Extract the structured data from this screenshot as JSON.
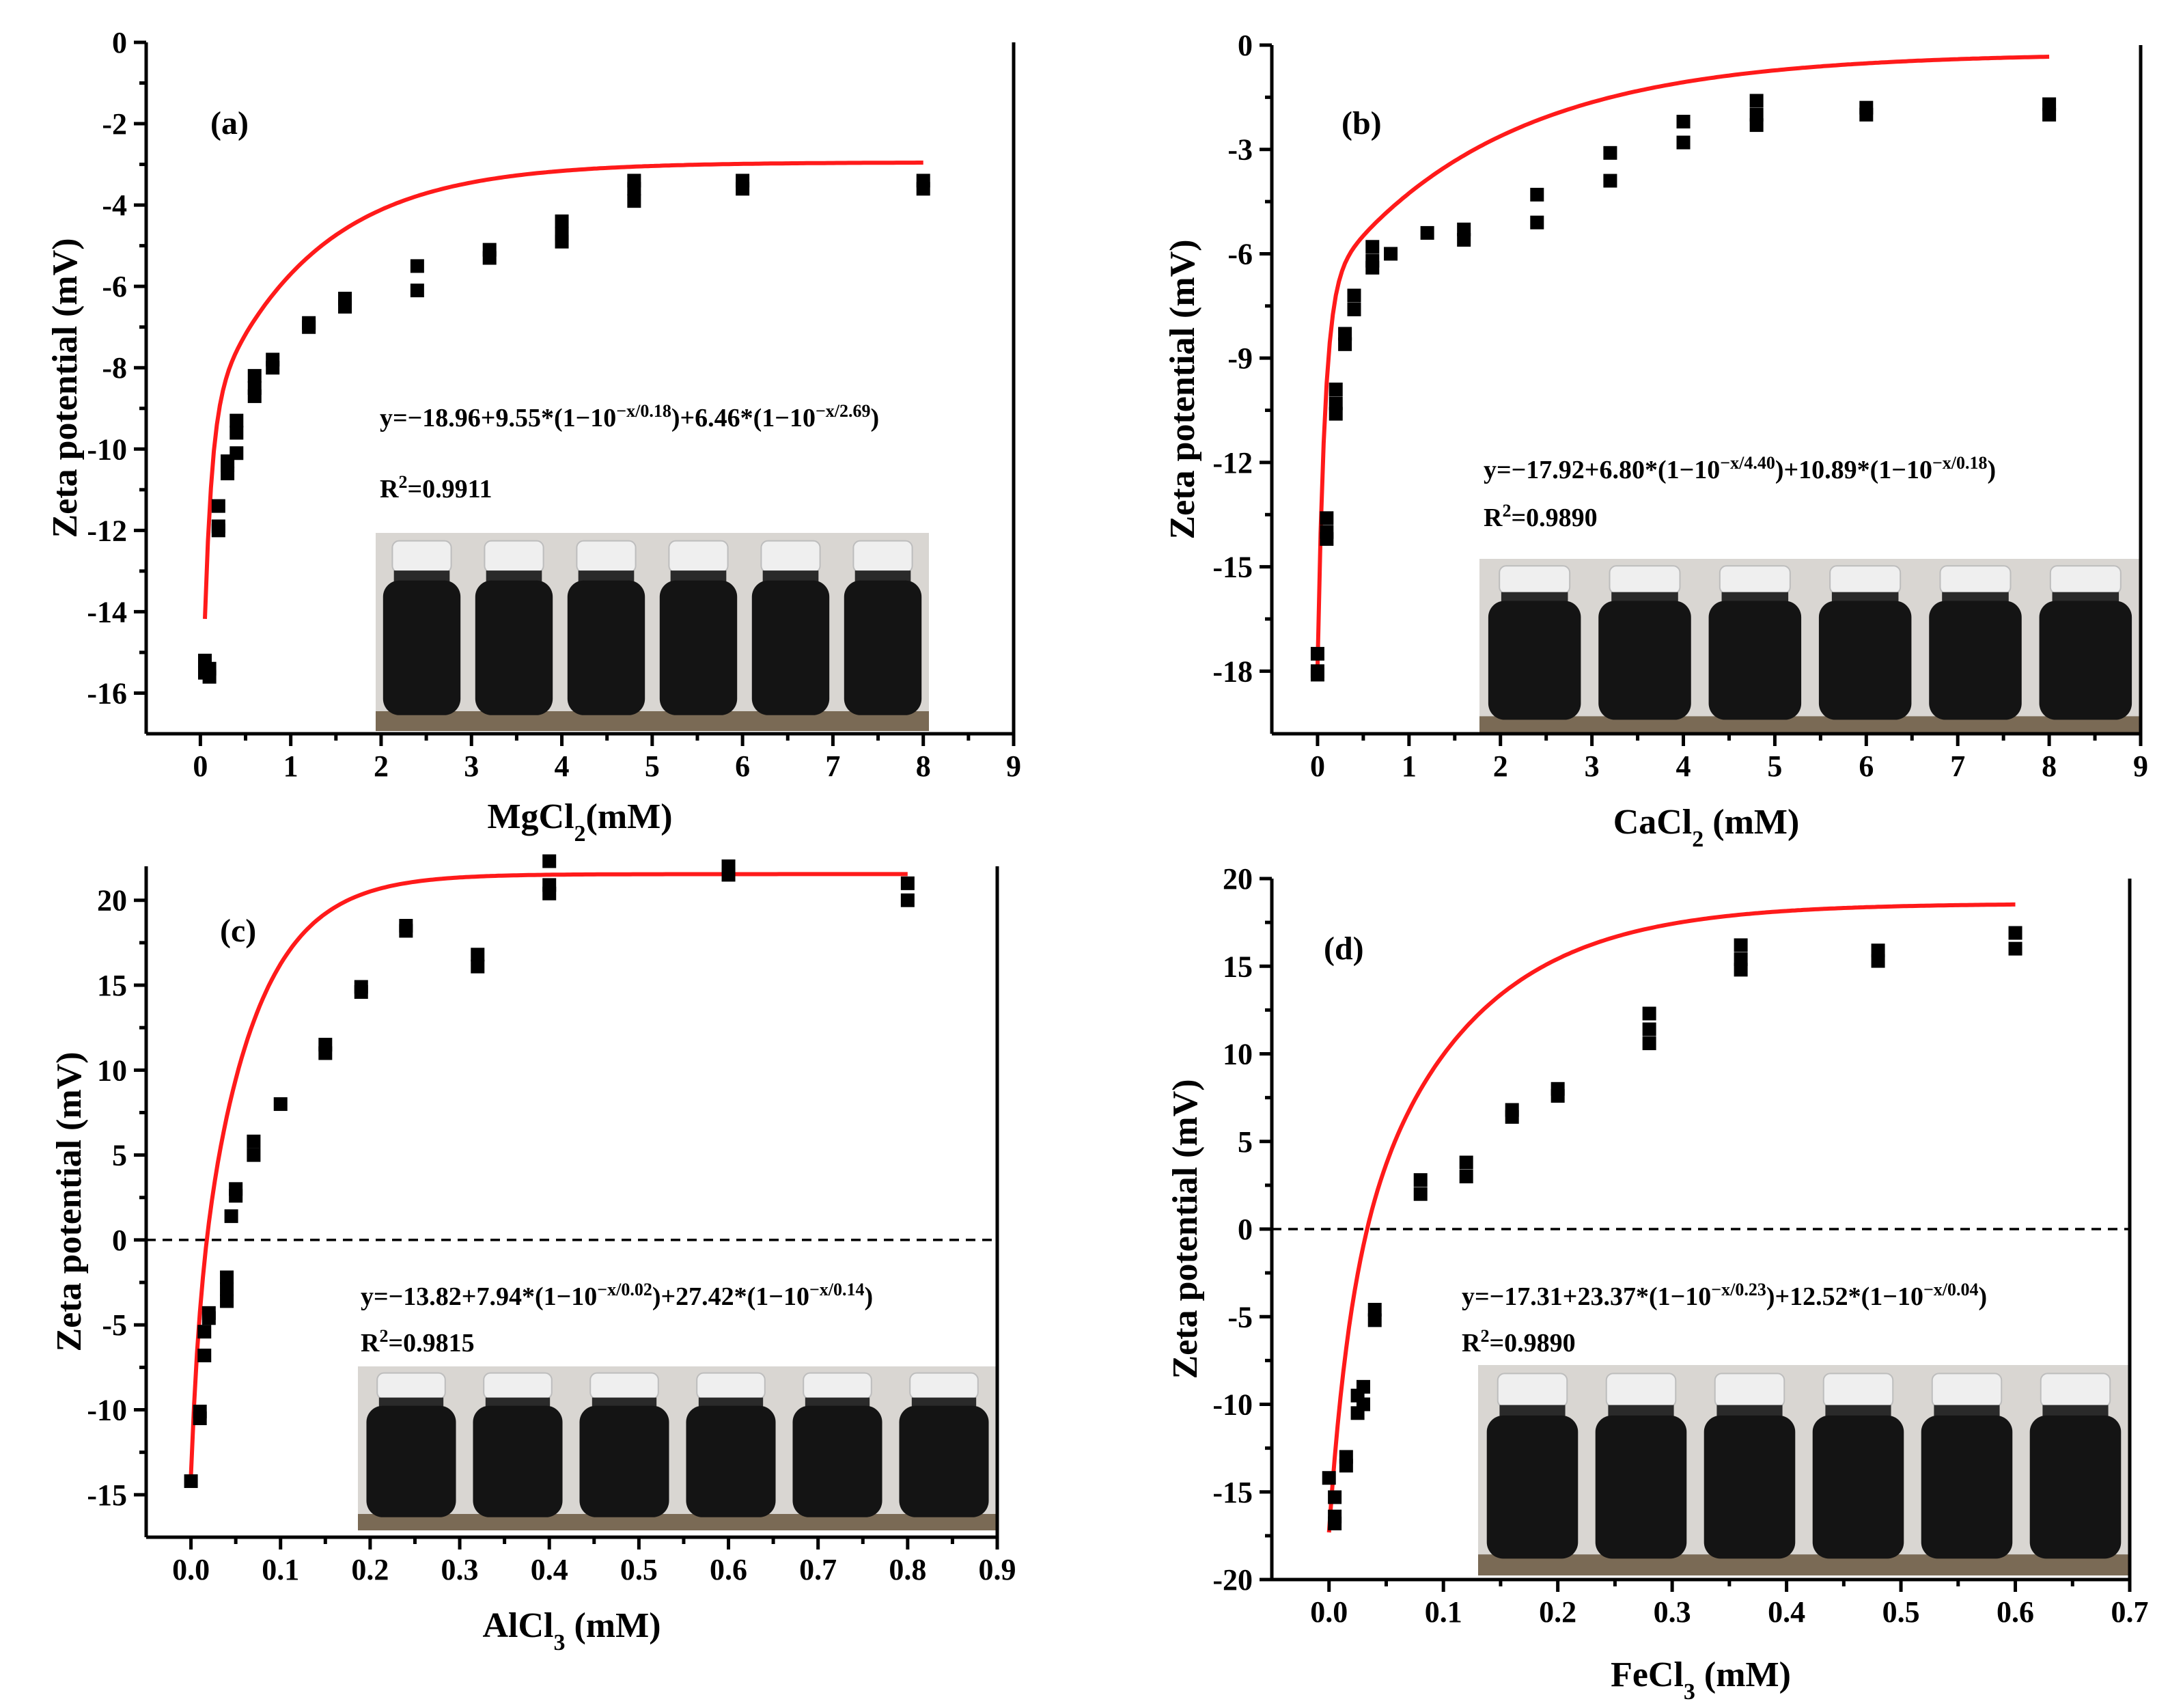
{
  "chart_data": [
    {
      "id": "a",
      "type": "scatter",
      "panel_label": "(a)",
      "xlabel_main": "MgCl",
      "xlabel_sub": "2",
      "xlabel_tail": "(mM)",
      "ylabel": "Zeta potential (mV)",
      "xlim": [
        -0.6,
        9
      ],
      "ylim": [
        -17,
        0
      ],
      "xticks": [
        0,
        1,
        2,
        3,
        4,
        5,
        6,
        7,
        8,
        9
      ],
      "xtick_labels": [
        "0",
        "1",
        "2",
        "3",
        "4",
        "5",
        "6",
        "7",
        "8",
        "9"
      ],
      "yticks": [
        0,
        -2,
        -4,
        -6,
        -8,
        -10,
        -12,
        -14,
        -16
      ],
      "ytick_labels": [
        "0",
        "-2",
        "-4",
        "-6",
        "-8",
        "-10",
        "-12",
        "-14",
        "-16"
      ],
      "equation": {
        "parts": [
          {
            "t": "y=−18.96+9.55*(1−10"
          },
          {
            "t": "−x/0.18",
            "sup": true
          },
          {
            "t": ")+6.46*(1−10"
          },
          {
            "t": "−x/2.69",
            "sup": true
          },
          {
            "t": ")"
          }
        ]
      },
      "r2": {
        "parts": [
          {
            "t": "R"
          },
          {
            "t": "2",
            "sup": true
          },
          {
            "t": "=0.9911"
          }
        ]
      },
      "fit": {
        "c": -18.96,
        "terms": [
          {
            "a": 9.55,
            "t": 0.18
          },
          {
            "a": 6.46,
            "t": 2.69
          }
        ]
      },
      "zero_line": false,
      "bottle_count": 6,
      "x": [
        0.05,
        0.05,
        0.05,
        0.1,
        0.1,
        0.2,
        0.2,
        0.2,
        0.3,
        0.3,
        0.3,
        0.4,
        0.4,
        0.4,
        0.6,
        0.6,
        0.6,
        0.8,
        0.8,
        1.2,
        1.2,
        1.6,
        1.6,
        2.4,
        2.4,
        3.2,
        3.2,
        4.0,
        4.0,
        4.0,
        4.8,
        4.8,
        4.8,
        6.0,
        6.0,
        8.0,
        8.0
      ],
      "y": [
        -15.3,
        -15.5,
        -15.2,
        -15.4,
        -15.6,
        -11.4,
        -12.0,
        -11.9,
        -10.4,
        -10.6,
        -10.3,
        -9.3,
        -9.6,
        -10.1,
        -8.2,
        -8.5,
        -8.7,
        -7.8,
        -8.0,
        -6.9,
        -7.0,
        -6.3,
        -6.5,
        -5.5,
        -6.1,
        -5.1,
        -5.3,
        -4.4,
        -4.7,
        -4.9,
        -3.4,
        -3.6,
        -3.9,
        -3.4,
        -3.6,
        -3.4,
        -3.6
      ]
    },
    {
      "id": "b",
      "type": "scatter",
      "panel_label": "(b)",
      "xlabel_main": "CaCl",
      "xlabel_sub": "2",
      "xlabel_tail": " (mM)",
      "ylabel": "Zeta potential (mV)",
      "xlim": [
        -0.5,
        9
      ],
      "ylim": [
        -19.8,
        0
      ],
      "xticks": [
        0,
        1,
        2,
        3,
        4,
        5,
        6,
        7,
        8,
        9
      ],
      "xtick_labels": [
        "0",
        "1",
        "2",
        "3",
        "4",
        "5",
        "6",
        "7",
        "8",
        "9"
      ],
      "yticks": [
        0,
        -3,
        -6,
        -9,
        -12,
        -15,
        -18
      ],
      "ytick_labels": [
        "0",
        "-3",
        "-6",
        "-9",
        "-12",
        "-15",
        "-18"
      ],
      "equation": {
        "parts": [
          {
            "t": "y=−17.92+6.80*(1−10"
          },
          {
            "t": "−x/4.40",
            "sup": true
          },
          {
            "t": ")+10.89*(1−10"
          },
          {
            "t": "−x/0.18",
            "sup": true
          },
          {
            "t": ")"
          }
        ]
      },
      "r2": {
        "parts": [
          {
            "t": "R"
          },
          {
            "t": "2",
            "sup": true
          },
          {
            "t": "=0.9890"
          }
        ]
      },
      "fit": {
        "c": -17.92,
        "terms": [
          {
            "a": 6.8,
            "t": 4.4
          },
          {
            "a": 10.89,
            "t": 0.18
          }
        ]
      },
      "zero_line": false,
      "bottle_count": 6,
      "x": [
        0,
        0,
        0,
        0.1,
        0.1,
        0.1,
        0.2,
        0.2,
        0.2,
        0.3,
        0.3,
        0.4,
        0.4,
        0.6,
        0.6,
        0.6,
        0.8,
        1.2,
        1.6,
        1.6,
        2.4,
        2.4,
        3.2,
        3.2,
        4.0,
        4.0,
        4.8,
        4.8,
        4.8,
        6.0,
        6.0,
        8.0,
        8.0
      ],
      "y": [
        -17.5,
        -18.0,
        -18.1,
        -13.6,
        -14.0,
        -14.2,
        -9.9,
        -10.3,
        -10.6,
        -8.3,
        -8.6,
        -7.2,
        -7.6,
        -5.8,
        -6.2,
        -6.4,
        -6.0,
        -5.4,
        -5.3,
        -5.6,
        -4.3,
        -5.1,
        -3.1,
        -3.9,
        -2.2,
        -2.8,
        -1.6,
        -2.0,
        -2.3,
        -1.8,
        -2.0,
        -1.7,
        -2.0
      ]
    },
    {
      "id": "c",
      "type": "scatter",
      "panel_label": "(c)",
      "xlabel_main": "AlCl",
      "xlabel_sub": "3",
      "xlabel_tail": " (mM)",
      "ylabel": "Zeta potential (mV)",
      "xlim": [
        -0.05,
        0.9
      ],
      "ylim": [
        -17.5,
        22
      ],
      "xticks": [
        0,
        0.1,
        0.2,
        0.3,
        0.4,
        0.5,
        0.6,
        0.7,
        0.8,
        0.9
      ],
      "xtick_labels": [
        "0.0",
        "0.1",
        "0.2",
        "0.3",
        "0.4",
        "0.5",
        "0.6",
        "0.7",
        "0.8",
        "0.9"
      ],
      "yticks": [
        20,
        15,
        10,
        5,
        0,
        -5,
        -10,
        -15
      ],
      "ytick_labels": [
        "20",
        "15",
        "10",
        "5",
        "0",
        "-5",
        "-10",
        "-15"
      ],
      "equation": {
        "parts": [
          {
            "t": "y=−13.82+7.94*(1−10"
          },
          {
            "t": "−x/0.02",
            "sup": true
          },
          {
            "t": ")+27.42*(1−10"
          },
          {
            "t": "−x/0.14",
            "sup": true
          },
          {
            "t": ")"
          }
        ]
      },
      "r2": {
        "parts": [
          {
            "t": "R"
          },
          {
            "t": "2",
            "sup": true
          },
          {
            "t": "=0.9815"
          }
        ]
      },
      "fit": {
        "c": -13.82,
        "terms": [
          {
            "a": 7.94,
            "t": 0.02
          },
          {
            "a": 27.42,
            "t": 0.14
          }
        ]
      },
      "zero_line": true,
      "bottle_count": 6,
      "x": [
        0,
        0.01,
        0.01,
        0.015,
        0.015,
        0.02,
        0.02,
        0.04,
        0.04,
        0.04,
        0.045,
        0.05,
        0.05,
        0.07,
        0.07,
        0.1,
        0.15,
        0.15,
        0.19,
        0.19,
        0.24,
        0.24,
        0.32,
        0.32,
        0.4,
        0.4,
        0.4,
        0.6,
        0.6,
        0.8,
        0.8
      ],
      "y": [
        -14.2,
        -10.1,
        -10.5,
        -6.8,
        -5.4,
        -4.3,
        -4.6,
        -3.6,
        -2.9,
        -2.2,
        1.4,
        2.6,
        3.0,
        5.0,
        5.8,
        8.0,
        11.0,
        11.5,
        14.6,
        14.9,
        18.2,
        18.5,
        16.1,
        16.8,
        20.4,
        20.9,
        22.3,
        21.5,
        22.0,
        20.0,
        21.0
      ]
    },
    {
      "id": "d",
      "type": "scatter",
      "panel_label": "(d)",
      "xlabel_main": "FeCl",
      "xlabel_sub": "3",
      "xlabel_tail": " (mM)",
      "ylabel": "Zeta potential (mV)",
      "xlim": [
        -0.05,
        0.7
      ],
      "ylim": [
        -20,
        20
      ],
      "xticks": [
        0,
        0.1,
        0.2,
        0.3,
        0.4,
        0.5,
        0.6,
        0.7
      ],
      "xtick_labels": [
        "0.0",
        "0.1",
        "0.2",
        "0.3",
        "0.4",
        "0.5",
        "0.6",
        "0.7"
      ],
      "yticks": [
        20,
        15,
        10,
        5,
        0,
        -5,
        -10,
        -15,
        -20
      ],
      "ytick_labels": [
        "20",
        "15",
        "10",
        "5",
        "0",
        "-5",
        "-10",
        "-15",
        "-20"
      ],
      "equation": {
        "parts": [
          {
            "t": "y=−17.31+23.37*(1−10"
          },
          {
            "t": "−x/0.23",
            "sup": true
          },
          {
            "t": ")+12.52*(1−10"
          },
          {
            "t": "−x/0.04",
            "sup": true
          },
          {
            "t": ")"
          }
        ]
      },
      "r2": {
        "parts": [
          {
            "t": "R"
          },
          {
            "t": "2",
            "sup": true
          },
          {
            "t": "=0.9890"
          }
        ]
      },
      "fit": {
        "c": -17.31,
        "terms": [
          {
            "a": 23.37,
            "t": 0.23
          },
          {
            "a": 12.52,
            "t": 0.04
          }
        ]
      },
      "zero_line": true,
      "bottle_count": 6,
      "x": [
        0,
        0.005,
        0.005,
        0.005,
        0.015,
        0.015,
        0.025,
        0.025,
        0.03,
        0.03,
        0.04,
        0.04,
        0.08,
        0.08,
        0.12,
        0.12,
        0.16,
        0.16,
        0.2,
        0.2,
        0.28,
        0.28,
        0.28,
        0.36,
        0.36,
        0.36,
        0.48,
        0.48,
        0.6,
        0.6
      ],
      "y": [
        -14.2,
        -15.3,
        -16.4,
        -16.8,
        -13.0,
        -13.5,
        -9.5,
        -10.5,
        -9.0,
        -10.0,
        -4.6,
        -5.2,
        2.0,
        2.8,
        3.0,
        3.8,
        6.4,
        6.8,
        7.6,
        8.0,
        10.6,
        11.4,
        12.3,
        14.8,
        15.4,
        16.2,
        15.3,
        15.9,
        16.0,
        16.9
      ]
    }
  ]
}
